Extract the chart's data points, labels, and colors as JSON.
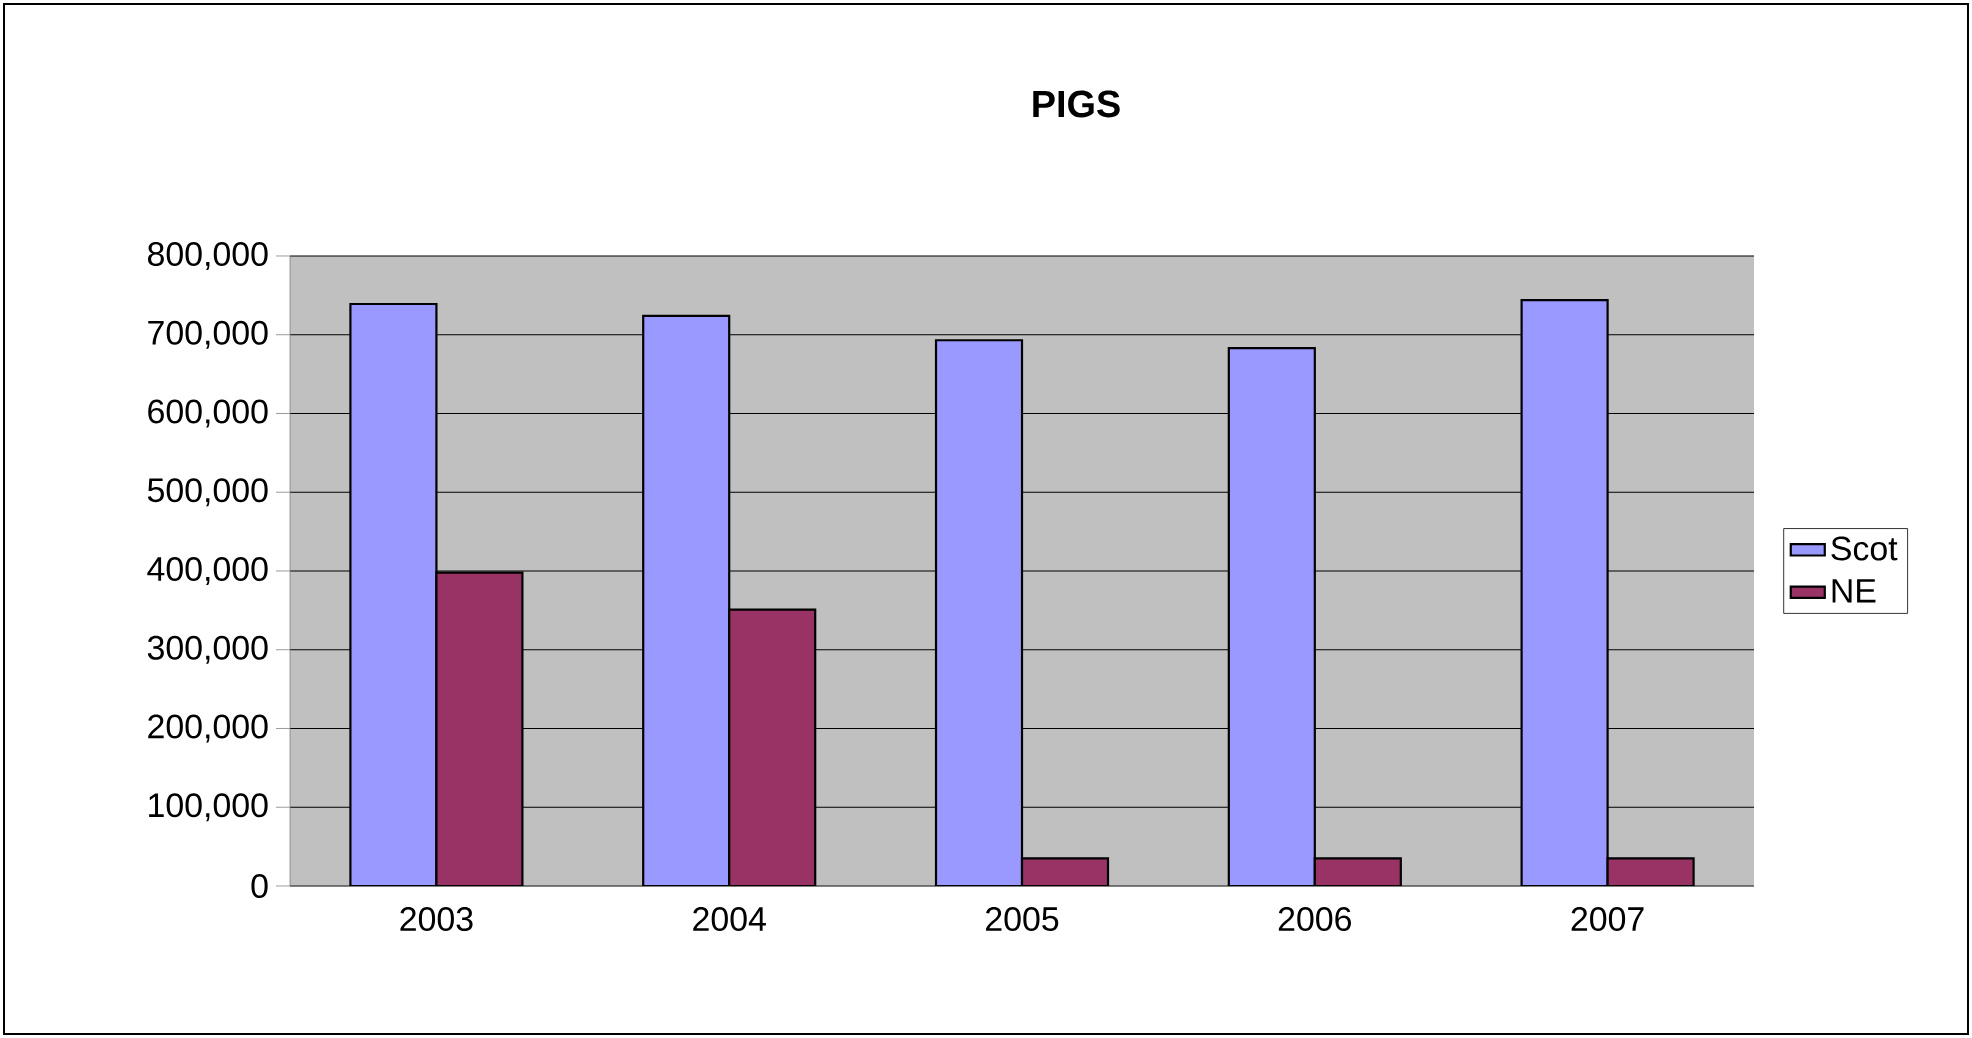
{
  "chart_data": {
    "type": "bar",
    "title": "PIGS",
    "categories": [
      "2003",
      "2004",
      "2005",
      "2006",
      "2007"
    ],
    "series": [
      {
        "name": "Scot",
        "color": "#9999ff",
        "values": [
          739000,
          724000,
          693000,
          683000,
          744000
        ]
      },
      {
        "name": "NE",
        "color": "#993366",
        "values": [
          398000,
          351000,
          35000,
          35000,
          35000
        ]
      }
    ],
    "ylim": [
      0,
      800000
    ],
    "yticks": [
      {
        "value": 0,
        "label": "0"
      },
      {
        "value": 100000,
        "label": "100,000"
      },
      {
        "value": 200000,
        "label": "200,000"
      },
      {
        "value": 300000,
        "label": "300,000"
      },
      {
        "value": 400000,
        "label": "400,000"
      },
      {
        "value": 500000,
        "label": "500,000"
      },
      {
        "value": 600000,
        "label": "600,000"
      },
      {
        "value": 700000,
        "label": "700,000"
      },
      {
        "value": 800000,
        "label": "800,000"
      }
    ],
    "grid": "y",
    "legend": "right"
  }
}
